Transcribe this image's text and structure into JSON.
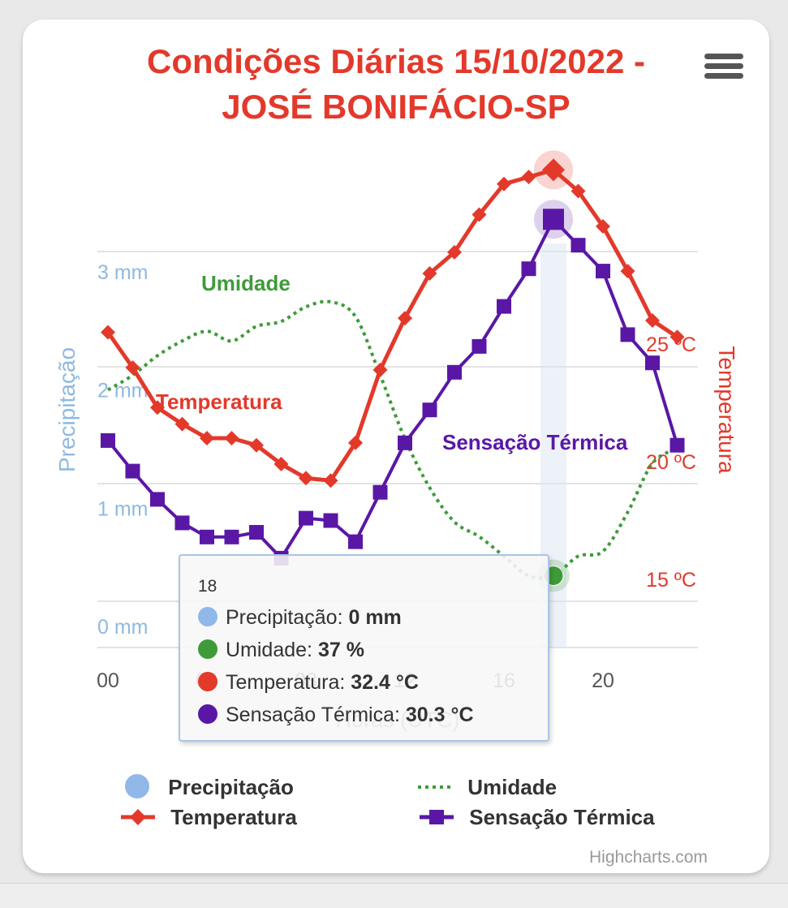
{
  "title": "Condições Diárias 15/10/2022 - JOSÉ BONIFÁCIO-SP",
  "credits": "Highcharts.com",
  "menu_icon": "hamburger-menu-icon",
  "chart_data": {
    "type": "line",
    "title": "Condições Diárias 15/10/2022 - JOSÉ BONIFÁCIO-SP",
    "xlabel": "Horas (UTC)",
    "x_ticks": [
      "00",
      "04",
      "08",
      "12",
      "16",
      "20"
    ],
    "x": [
      0,
      1,
      2,
      3,
      4,
      5,
      6,
      7,
      8,
      9,
      10,
      11,
      12,
      13,
      14,
      15,
      16,
      17,
      18,
      19,
      20,
      21,
      22,
      23
    ],
    "y_axes": {
      "precipitation": {
        "title": "Precipitação",
        "ticks": [
          "0 mm",
          "1 mm",
          "2 mm",
          "3 mm"
        ],
        "range": [
          0,
          3
        ],
        "color": "#7cb5ec"
      },
      "temperature": {
        "title": "Temperatura",
        "ticks": [
          "15 ºC",
          "20 ºC",
          "25 ºC"
        ],
        "range": [
          13.3,
          33.5
        ],
        "color": "#e3392b"
      }
    },
    "series": [
      {
        "name": "Precipitação",
        "color": "#90b8e8",
        "unit": "mm",
        "values": [
          0,
          0,
          0,
          0,
          0,
          0,
          0,
          0,
          0,
          0,
          0,
          0,
          0,
          0,
          0,
          0,
          0,
          0,
          0,
          0,
          0,
          0,
          0,
          0
        ]
      },
      {
        "name": "Umidade",
        "color": "#3f9b3a",
        "unit": "%",
        "values": [
          75,
          78,
          82,
          85,
          87,
          85,
          88,
          89,
          92,
          93,
          90,
          78,
          65,
          55,
          48,
          45,
          41,
          37,
          37,
          41,
          42,
          50,
          60,
          63
        ]
      },
      {
        "name": "Temperatura",
        "color": "#e3392b",
        "unit": "°C",
        "values": [
          25.5,
          24.0,
          22.3,
          21.6,
          21.0,
          21.0,
          20.7,
          19.9,
          19.3,
          19.2,
          20.8,
          23.9,
          26.1,
          28.0,
          28.9,
          30.5,
          31.8,
          32.1,
          32.4,
          31.5,
          30.0,
          28.1,
          26.0,
          25.3
        ]
      },
      {
        "name": "Sensação Térmica",
        "color": "#5a17a6",
        "unit": "°C",
        "values": [
          20.9,
          19.6,
          18.4,
          17.4,
          16.8,
          16.8,
          17.0,
          15.9,
          17.6,
          17.5,
          16.6,
          18.7,
          20.8,
          22.2,
          23.8,
          24.9,
          26.6,
          28.2,
          30.3,
          29.2,
          28.1,
          25.4,
          24.2,
          20.7
        ]
      }
    ],
    "highlight": {
      "x": 18,
      "x_label": "18"
    },
    "tooltip": {
      "header": "18",
      "rows": [
        {
          "name": "Precipitação",
          "value": "0 mm",
          "color": "#90b8e8"
        },
        {
          "name": "Umidade",
          "value": "37 %",
          "color": "#3f9b3a"
        },
        {
          "name": "Temperatura",
          "value": "32.4 °C",
          "color": "#e3392b"
        },
        {
          "name": "Sensação Térmica",
          "value": "30.3 °C",
          "color": "#5a17a6"
        }
      ]
    },
    "annotations": [
      {
        "text": "Umidade",
        "color": "#3f9b3a"
      },
      {
        "text": "Temperatura",
        "color": "#e3392b"
      },
      {
        "text": "Sensação Térmica",
        "color": "#5a17a6"
      }
    ],
    "legend": {
      "placement": "bottom",
      "items": [
        {
          "name": "Precipitação",
          "symbol": "circle",
          "color": "#90b8e8"
        },
        {
          "name": "Umidade",
          "symbol": "dotted-line",
          "color": "#3f9b3a"
        },
        {
          "name": "Temperatura",
          "symbol": "line-diamond",
          "color": "#e3392b"
        },
        {
          "name": "Sensação Térmica",
          "symbol": "line-square",
          "color": "#5a17a6"
        }
      ]
    },
    "grid": true
  }
}
